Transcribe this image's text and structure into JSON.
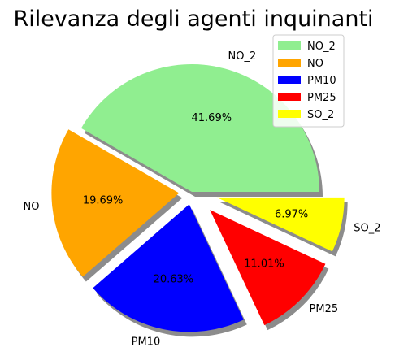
{
  "chart_data": {
    "type": "pie",
    "title": "Rilevanza degli agenti inquinanti",
    "categories": [
      "NO_2",
      "NO",
      "PM10",
      "PM25",
      "SO_2"
    ],
    "values": [
      41.69,
      19.69,
      20.63,
      11.01,
      6.97
    ],
    "percent_labels": [
      "41.69%",
      "19.69%",
      "20.63%",
      "11.01%",
      "6.97%"
    ],
    "colors": [
      "#90ee90",
      "#ffa500",
      "#0000ff",
      "#ff0000",
      "#ffff00"
    ],
    "explode": [
      0,
      0.1,
      0.1,
      0.2,
      0.2
    ],
    "start_angle": 0,
    "shadow": true,
    "legend": {
      "placement": "upper-right",
      "entries": [
        "NO_2",
        "NO",
        "PM10",
        "PM25",
        "SO_2"
      ]
    }
  }
}
